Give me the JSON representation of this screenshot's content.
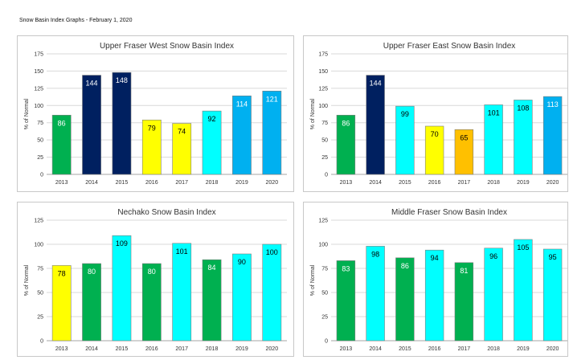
{
  "page": {
    "title": "Snow Basin Index Graphs - February 1, 2020"
  },
  "colors": {
    "green": "#00b050",
    "navy": "#002060",
    "yellow": "#ffff00",
    "orange": "#ffc000",
    "cyan": "#00ffff",
    "blue": "#00b0f0"
  },
  "chart_data": [
    {
      "type": "bar",
      "title": "Upper Fraser West Snow Basin Index",
      "ylabel": "% of Normal",
      "ylim": [
        0,
        175
      ],
      "yticks": [
        0,
        25,
        50,
        75,
        100,
        125,
        150,
        175
      ],
      "categories": [
        "2013",
        "2014",
        "2015",
        "2016",
        "2017",
        "2018",
        "2019",
        "2020"
      ],
      "values": [
        86,
        144,
        148,
        79,
        74,
        92,
        114,
        121
      ],
      "bar_colors": [
        "#00b050",
        "#002060",
        "#002060",
        "#ffff00",
        "#ffff00",
        "#00ffff",
        "#00b0f0",
        "#00b0f0"
      ],
      "grid": true
    },
    {
      "type": "bar",
      "title": "Upper Fraser East Snow Basin Index",
      "ylabel": "% of Normal",
      "ylim": [
        0,
        175
      ],
      "yticks": [
        0,
        25,
        50,
        75,
        100,
        125,
        150,
        175
      ],
      "categories": [
        "2013",
        "2014",
        "2015",
        "2016",
        "2017",
        "2018",
        "2019",
        "2020"
      ],
      "values": [
        86,
        144,
        99,
        70,
        65,
        101,
        108,
        113
      ],
      "bar_colors": [
        "#00b050",
        "#002060",
        "#00ffff",
        "#ffff00",
        "#ffc000",
        "#00ffff",
        "#00ffff",
        "#00b0f0"
      ],
      "grid": true
    },
    {
      "type": "bar",
      "title": "Nechako Snow Basin Index",
      "ylabel": "% of Normal",
      "ylim": [
        0,
        125
      ],
      "yticks": [
        0,
        25,
        50,
        75,
        100,
        125
      ],
      "categories": [
        "2013",
        "2014",
        "2015",
        "2016",
        "2017",
        "2018",
        "2019",
        "2020"
      ],
      "values": [
        78,
        80,
        109,
        80,
        101,
        84,
        90,
        100
      ],
      "bar_colors": [
        "#ffff00",
        "#00b050",
        "#00ffff",
        "#00b050",
        "#00ffff",
        "#00b050",
        "#00ffff",
        "#00ffff"
      ],
      "grid": true
    },
    {
      "type": "bar",
      "title": "Middle Fraser Snow Basin Index",
      "ylabel": "% of Normal",
      "ylim": [
        0,
        125
      ],
      "yticks": [
        0,
        25,
        50,
        75,
        100,
        125
      ],
      "categories": [
        "2013",
        "2014",
        "2015",
        "2016",
        "2017",
        "2018",
        "2019",
        "2020"
      ],
      "values": [
        83,
        98,
        86,
        94,
        81,
        96,
        105,
        95
      ],
      "bar_colors": [
        "#00b050",
        "#00ffff",
        "#00b050",
        "#00ffff",
        "#00b050",
        "#00ffff",
        "#00ffff",
        "#00ffff"
      ],
      "grid": true
    }
  ]
}
